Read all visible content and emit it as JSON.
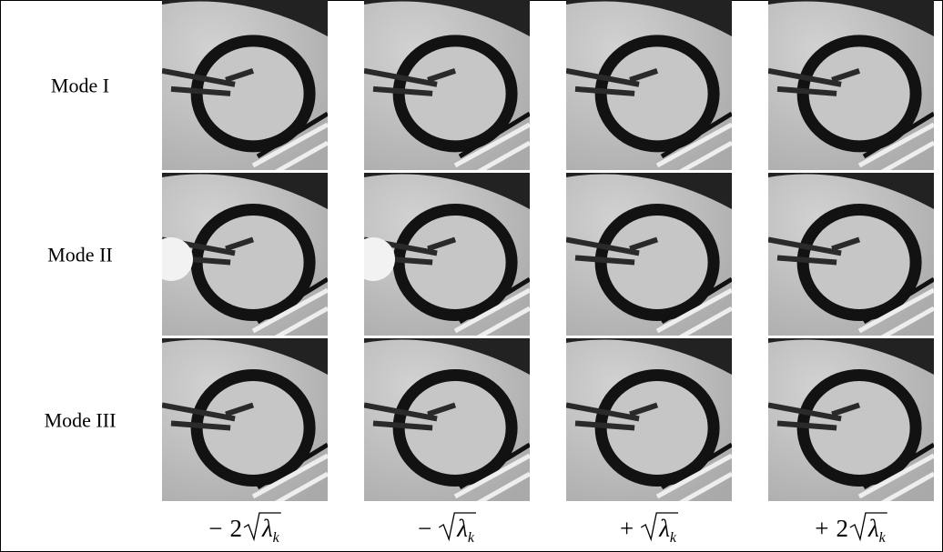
{
  "figure": {
    "rows": [
      {
        "label": "Mode I"
      },
      {
        "label": "Mode II"
      },
      {
        "label": "Mode III"
      }
    ],
    "columns": [
      {
        "sign": "−",
        "coefficient": "2",
        "radicand": "λ",
        "subscript": "k"
      },
      {
        "sign": "−",
        "radicand": "λ",
        "subscript": "k"
      },
      {
        "sign": "+",
        "radicand": "λ",
        "subscript": "k"
      },
      {
        "sign": "+",
        "coefficient": "2",
        "radicand": "λ",
        "subscript": "k"
      }
    ]
  }
}
